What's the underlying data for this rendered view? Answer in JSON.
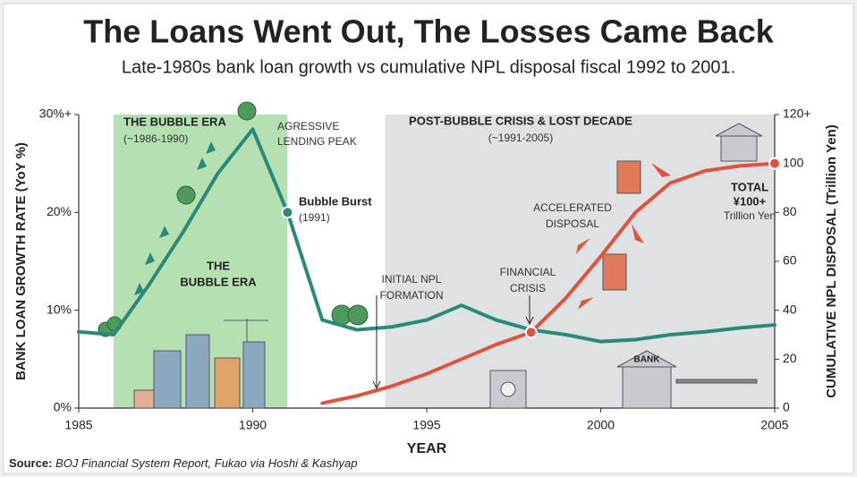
{
  "chart_data": {
    "type": "line",
    "title": "The Loans Went Out, The Losses Came Back",
    "subtitle": "Late-1980s bank loan growth vs cumulative NPL disposal fiscal 1992 to 2001.",
    "xlabel": "YEAR",
    "ylabel": "BANK LOAN GROWTH RATE (YoY %)",
    "y2label": "CUMULATIVE NPL DISPOSAL (Trillion Yen)",
    "x": [
      1985,
      1986,
      1987,
      1988,
      1989,
      1990,
      1991,
      1992,
      1993,
      1994,
      1995,
      1996,
      1997,
      1998,
      1999,
      2000,
      2001,
      2002,
      2003,
      2004,
      2005
    ],
    "series": [
      {
        "name": "Bank loan growth rate",
        "color": "#2a8a78",
        "values": [
          7.8,
          7.5,
          12.5,
          18,
          24,
          28.5,
          20,
          9,
          8,
          8.3,
          9,
          10.5,
          9,
          8,
          7.5,
          6.8,
          7,
          7.5,
          7.8,
          8.2,
          8.5
        ]
      },
      {
        "name": "Cumulative NPL disposal",
        "color": "#e0533a",
        "axis": "y2",
        "values": [
          null,
          null,
          null,
          null,
          null,
          null,
          null,
          2,
          5,
          9,
          14,
          20,
          26,
          31,
          45,
          62,
          80,
          92,
          97,
          99,
          100
        ]
      }
    ],
    "xlim": [
      1985,
      2005
    ],
    "xticks": [
      1985,
      1990,
      1995,
      2000,
      2005
    ],
    "ylim": [
      0,
      30
    ],
    "yticks": [
      {
        "value": 0,
        "label": "0%"
      },
      {
        "value": 10,
        "label": "10%"
      },
      {
        "value": 20,
        "label": "20%"
      },
      {
        "value": 30,
        "label": "30%+"
      }
    ],
    "y2lim": [
      0,
      120
    ],
    "y2ticks": [
      0,
      20,
      40,
      60,
      80,
      100,
      {
        "value": 120,
        "label": "120+"
      }
    ],
    "regions": [
      {
        "x": [
          1986,
          1991
        ],
        "color": "#a8dca4"
      },
      {
        "x": [
          1993.8,
          2005
        ],
        "color": "#d9dde0"
      }
    ],
    "annotations": {
      "bubble_era_header": [
        "THE BUBBLE ERA",
        "(~1986-1990)"
      ],
      "lending_peak": [
        "AGRESSIVE",
        "LENDING PEAK"
      ],
      "bubble_era": [
        "THE",
        "BUBBLE ERA"
      ],
      "bubble_burst": [
        "Bubble Burst",
        "(1991)"
      ],
      "post_bubble": [
        "POST-BUBBLE CRISIS & LOST DECADE",
        "(~1991-2005)"
      ],
      "initial_npl": [
        "INITIAL NPL",
        "FORMATION"
      ],
      "financial_crisis": [
        "FINANCIAL",
        "CRISIS"
      ],
      "accelerated": [
        "ACCELERATED",
        "DISPOSAL"
      ],
      "total": [
        "TOTAL",
        "¥100+",
        "Trillion Yen"
      ],
      "bank_sign": "BANK"
    },
    "source_label": "Source:",
    "source": "BOJ Financial System Report, Fukao via Hoshi & Kashyap"
  }
}
